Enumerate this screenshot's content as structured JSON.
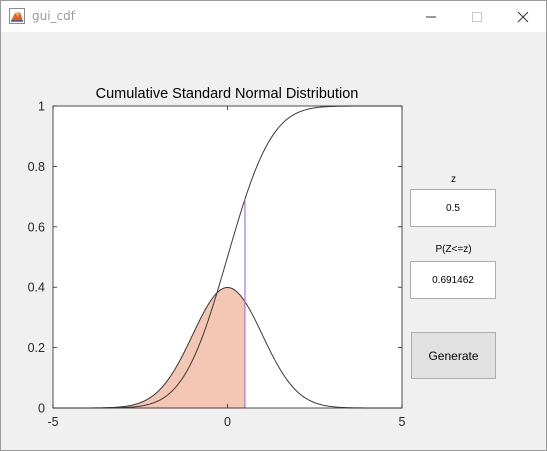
{
  "window": {
    "title": "gui_cdf",
    "icon": "matlab-figure-icon",
    "controls": [
      "minimize-icon",
      "maximize-icon",
      "close-icon"
    ]
  },
  "controls": {
    "z_label": "z",
    "z_value": "0.5",
    "p_label": "P(Z<=z)",
    "p_value": "0.691462",
    "generate_label": "Generate"
  },
  "colors": {
    "curve": "#3a3a3a",
    "fill": "#f4c7b4",
    "fill_edge": "#d9957a",
    "marker": "#a877c9",
    "axes_bg": "#ffffff",
    "window_bg": "#f0f0f0"
  },
  "chart_data": {
    "type": "line",
    "title": "Cumulative Standard Normal Distribution",
    "xlabel": "",
    "ylabel": "",
    "xlim": [
      -5,
      5
    ],
    "ylim": [
      0,
      1
    ],
    "xticks": [
      "-5",
      "0",
      "5"
    ],
    "yticks": [
      "0",
      "0.2",
      "0.4",
      "0.6",
      "0.8",
      "1"
    ],
    "grid": false,
    "series": [
      {
        "function": "normal_cdf",
        "mu": 0,
        "sigma": 1
      },
      {
        "function": "normal_pdf",
        "mu": 0,
        "sigma": 1,
        "shaded_below": 0.5
      }
    ],
    "z": 0.5,
    "cdf_at_z": 0.691462
  }
}
